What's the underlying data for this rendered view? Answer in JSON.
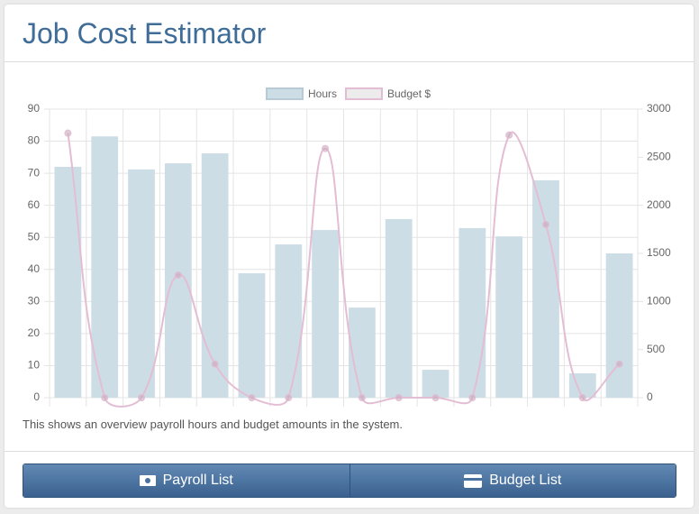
{
  "header": {
    "title": "Job Cost Estimator"
  },
  "chart_data": {
    "type": "bar",
    "categories": [
      null,
      null,
      null,
      null,
      null,
      null,
      null,
      null,
      null,
      null,
      null,
      null,
      null,
      null,
      null,
      null
    ],
    "series": [
      {
        "name": "Hours",
        "type": "bar",
        "color": "#cddde6",
        "values": [
          72,
          81.5,
          71.2,
          73.1,
          76.2,
          38.8,
          47.8,
          52.3,
          28.1,
          55.7,
          8.7,
          52.9,
          50.3,
          67.8,
          7.6,
          45
        ]
      },
      {
        "name": "Budget $",
        "type": "line",
        "axis": "y2",
        "color": "#e3bdd3",
        "values": [
          2750,
          0,
          0,
          1275,
          350,
          0,
          0,
          2590,
          0,
          0,
          0,
          0,
          2730,
          1800,
          0,
          350
        ]
      }
    ],
    "ylim": [
      0,
      90
    ],
    "yticks": [
      0,
      10,
      20,
      30,
      40,
      50,
      60,
      70,
      80,
      90
    ],
    "y2lim": [
      0,
      3000
    ],
    "y2ticks": [
      0,
      500,
      1000,
      1500,
      2000,
      2500,
      3000
    ],
    "grid": true,
    "legend": "top"
  },
  "description": "This shows an overview payroll hours and budget amounts in the system.",
  "buttons": [
    "Payroll List",
    "Budget List"
  ]
}
